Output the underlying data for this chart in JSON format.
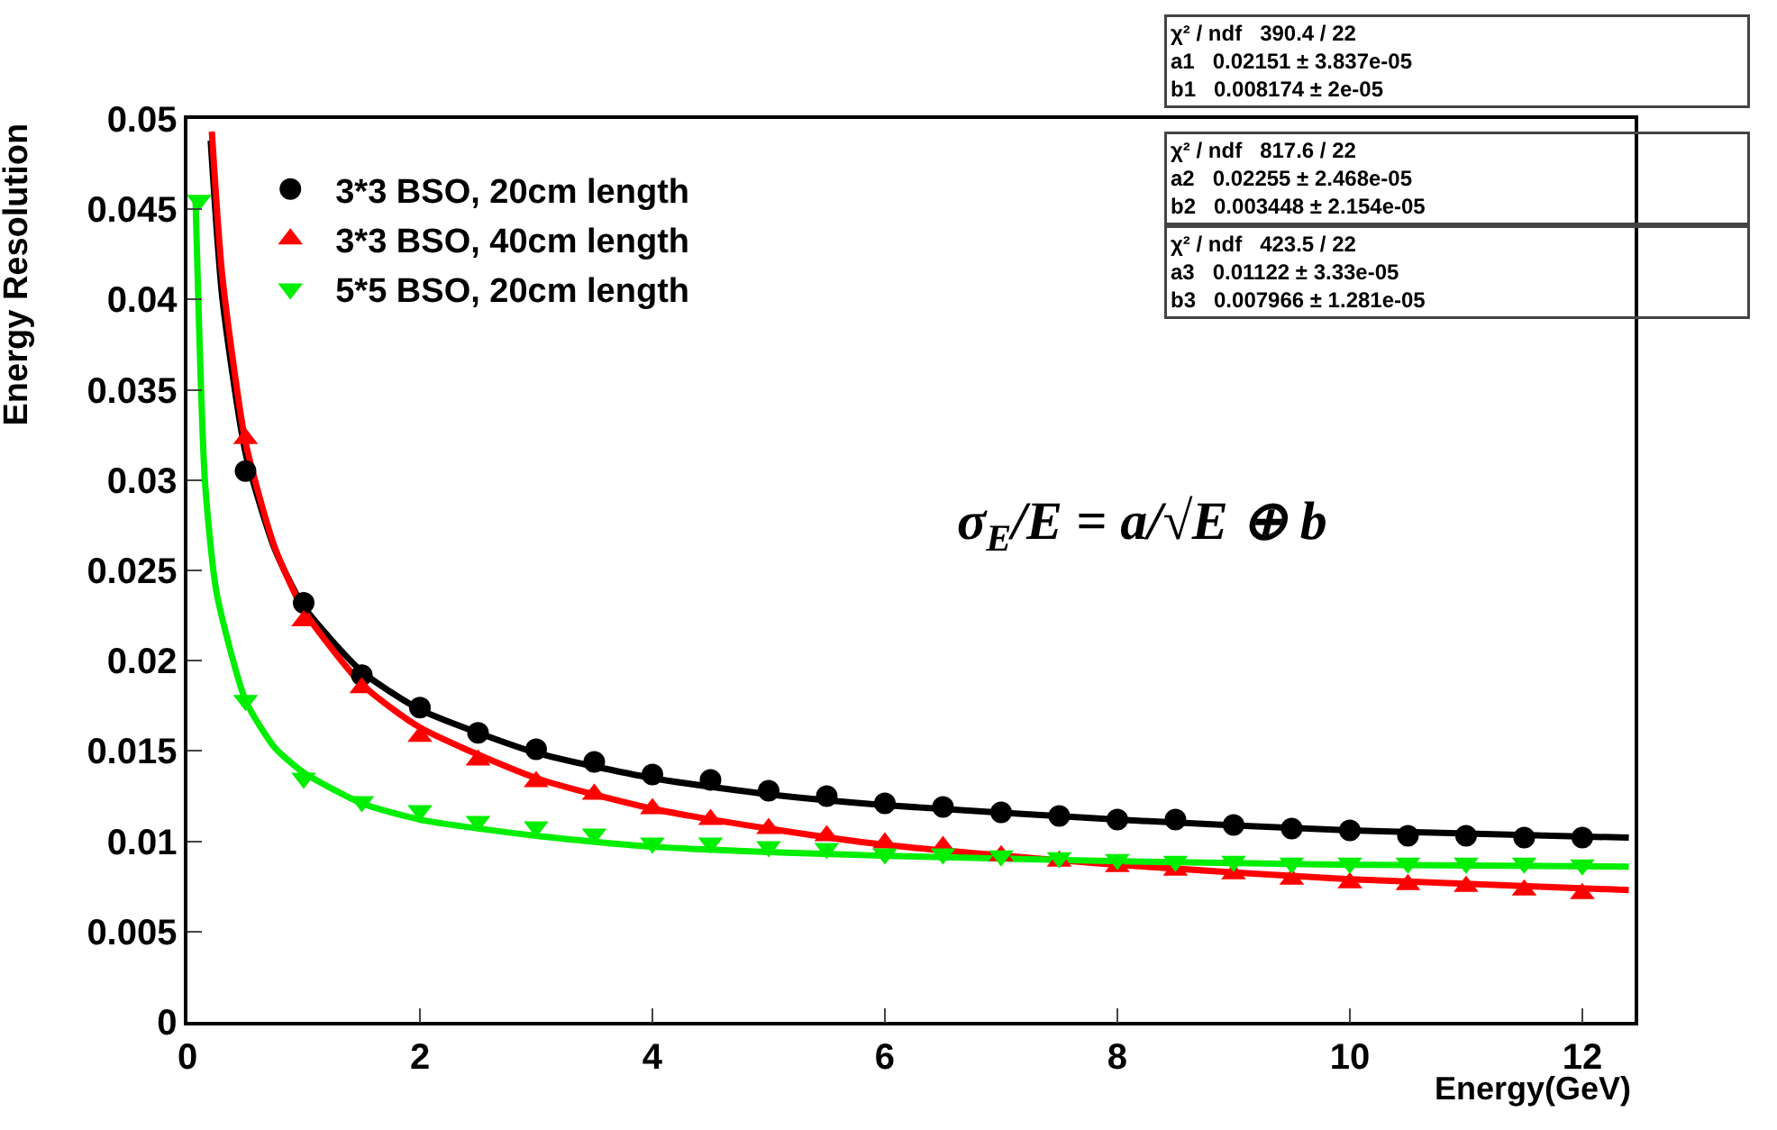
{
  "chart_data": {
    "type": "scatter",
    "xlabel": "Energy(GeV)",
    "ylabel": "Energy Resolution",
    "xlim": [
      0,
      12.45
    ],
    "xticks": [
      0,
      2,
      4,
      6,
      8,
      10,
      12
    ],
    "ylim": [
      0,
      0.05
    ],
    "yticks": [
      0,
      0.005,
      0.01,
      0.015,
      0.02,
      0.025,
      0.03,
      0.035,
      0.04,
      0.045,
      0.05
    ],
    "grid": false,
    "legend": "top left",
    "series": [
      {
        "name": "3*3 BSO, 20cm length",
        "color": "#000000",
        "marker": "circle",
        "x": [
          0.5,
          1,
          1.5,
          2,
          2.5,
          3,
          3.5,
          4,
          4.5,
          5,
          5.5,
          6,
          6.5,
          7,
          7.5,
          8,
          8.5,
          9,
          9.5,
          10,
          10.5,
          11,
          11.5,
          12
        ],
        "values": [
          0.0305,
          0.0232,
          0.0192,
          0.0174,
          0.016,
          0.0151,
          0.0144,
          0.0137,
          0.0134,
          0.0128,
          0.0125,
          0.0121,
          0.0119,
          0.0116,
          0.0114,
          0.0112,
          0.0112,
          0.0109,
          0.0107,
          0.0106,
          0.0103,
          0.0103,
          0.0102,
          0.0102
        ]
      },
      {
        "name": "3*3 BSO, 40cm length",
        "color": "#ff0000",
        "marker": "triangle",
        "x": [
          0.5,
          1,
          1.5,
          2,
          2.5,
          3,
          3.5,
          4,
          4.5,
          5,
          5.5,
          6,
          6.5,
          7,
          7.5,
          8,
          8.5,
          9,
          9.5,
          10,
          10.5,
          11,
          11.5,
          12
        ],
        "values": [
          0.0323,
          0.0222,
          0.0185,
          0.0158,
          0.0145,
          0.0133,
          0.0126,
          0.0118,
          0.0112,
          0.0107,
          0.0103,
          0.0099,
          0.0097,
          0.0092,
          0.0089,
          0.0086,
          0.0084,
          0.0082,
          0.0079,
          0.0077,
          0.0076,
          0.0075,
          0.0073,
          0.0071
        ]
      },
      {
        "name": "5*5 BSO, 20cm length",
        "color": "#00ee00",
        "marker": "triangle-down",
        "x": [
          0.1,
          0.5,
          1,
          1.5,
          2,
          2.5,
          3,
          3.5,
          4,
          4.5,
          5,
          5.5,
          6,
          6.5,
          7,
          7.5,
          8,
          8.5,
          9,
          9.5,
          10,
          10.5,
          11,
          11.5,
          12
        ],
        "values": [
          0.0455,
          0.0178,
          0.0135,
          0.0122,
          0.0117,
          0.0111,
          0.0108,
          0.0104,
          0.0099,
          0.0099,
          0.0097,
          0.0096,
          0.0093,
          0.0093,
          0.0092,
          0.0091,
          0.009,
          0.0089,
          0.0089,
          0.0088,
          0.0088,
          0.0088,
          0.0088,
          0.0088,
          0.0087
        ]
      },
      {
        "type": "line",
        "color": "#000000",
        "x": [
          0.2,
          0.3,
          0.5,
          0.75,
          1,
          1.5,
          2,
          3,
          4,
          5,
          6,
          8,
          10,
          12.4
        ],
        "values": [
          0.0488,
          0.0401,
          0.0315,
          0.0262,
          0.023,
          0.0194,
          0.0173,
          0.0149,
          0.0135,
          0.0126,
          0.012,
          0.0112,
          0.0106,
          0.0102
        ]
      },
      {
        "type": "line",
        "color": "#ff0000",
        "x": [
          0.21,
          0.3,
          0.5,
          0.75,
          1,
          1.5,
          2,
          3,
          4,
          5,
          6,
          8,
          10,
          12.4
        ],
        "values": [
          0.0493,
          0.0413,
          0.0321,
          0.0263,
          0.0228,
          0.0187,
          0.0163,
          0.0135,
          0.0118,
          0.0107,
          0.0098,
          0.0087,
          0.0079,
          0.0073
        ]
      },
      {
        "type": "line",
        "color": "#00ee00",
        "x": [
          0.07,
          0.15,
          0.25,
          0.5,
          0.75,
          1,
          1.5,
          2,
          3,
          4,
          6,
          8,
          10,
          12.4
        ],
        "values": [
          0.0455,
          0.03,
          0.0238,
          0.0178,
          0.0152,
          0.0138,
          0.0121,
          0.0112,
          0.0103,
          0.0097,
          0.0092,
          0.0089,
          0.0087,
          0.0086
        ]
      }
    ],
    "annotations": [
      "χ² / ndf   390.4 / 22",
      "a1   0.02151 ± 3.837e-05",
      "b1   0.008174 ± 2e-05",
      "χ² / ndf   817.6 / 22",
      "a2   0.02255 ± 2.468e-05",
      "b2   0.003448 ± 2.154e-05",
      "χ² / ndf   423.5 / 22",
      "a3   0.01122 ± 3.33e-05",
      "b3   0.007966 ± 1.281e-05",
      "σ$_{E}$/E = a/√E ⊕ b"
    ]
  }
}
